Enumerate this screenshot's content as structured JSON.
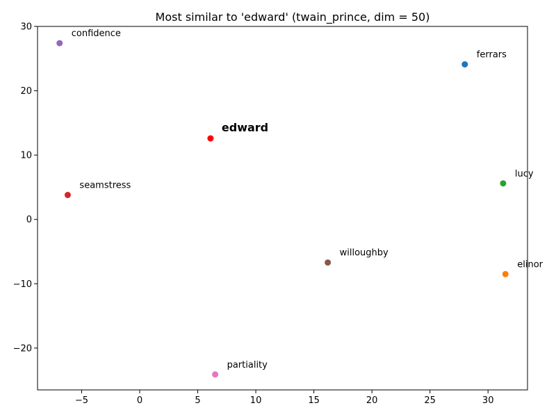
{
  "chart_data": {
    "type": "scatter",
    "title": "Most similar to 'edward' (twain_prince, dim = 50)",
    "xlabel": "",
    "ylabel": "",
    "xlim": [
      -8.8,
      33.4
    ],
    "ylim": [
      -26.5,
      30
    ],
    "xticks": [
      -5,
      0,
      5,
      10,
      15,
      20,
      25,
      30
    ],
    "yticks": [
      -20,
      -10,
      0,
      10,
      20,
      30
    ],
    "xtick_labels": [
      "−5",
      "0",
      "5",
      "10",
      "15",
      "20",
      "25",
      "30"
    ],
    "ytick_labels": [
      "−20",
      "−10",
      "0",
      "10",
      "20",
      "30"
    ],
    "grid": false,
    "highlight": "edward",
    "points": [
      {
        "label": "edward",
        "x": 6.1,
        "y": 12.6,
        "color": "#ff0000"
      },
      {
        "label": "ferrars",
        "x": 28.0,
        "y": 24.1,
        "color": "#1f77b4"
      },
      {
        "label": "elinor",
        "x": 31.5,
        "y": -8.5,
        "color": "#ff7f0e"
      },
      {
        "label": "lucy",
        "x": 31.3,
        "y": 5.6,
        "color": "#2ca02c"
      },
      {
        "label": "seamstress",
        "x": -6.2,
        "y": 3.8,
        "color": "#d62728"
      },
      {
        "label": "confidence",
        "x": -6.9,
        "y": 27.4,
        "color": "#9467bd"
      },
      {
        "label": "willoughby",
        "x": 16.2,
        "y": -6.7,
        "color": "#8c564b"
      },
      {
        "label": "partiality",
        "x": 6.5,
        "y": -24.1,
        "color": "#e377c2"
      }
    ]
  }
}
